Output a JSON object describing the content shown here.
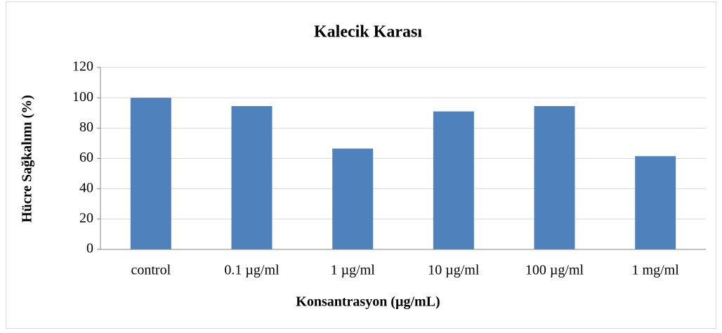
{
  "chart_data": {
    "type": "bar",
    "title": "Kalecik Karası",
    "x_label": "Konsantrasyon (µg/mL)",
    "y_label": "Hücre Sağkalımı (%)",
    "categories": [
      "control",
      "0.1 µg/ml",
      "1 µg/ml",
      "10 µg/ml",
      "100 µg/ml",
      "1 mg/ml"
    ],
    "values": [
      100,
      94.5,
      66.5,
      91,
      94.5,
      61.5
    ],
    "color": "#4f81bd",
    "ylim": [
      0,
      120
    ],
    "yticks": [
      0,
      20,
      40,
      60,
      80,
      100,
      120
    ],
    "grid": true
  }
}
